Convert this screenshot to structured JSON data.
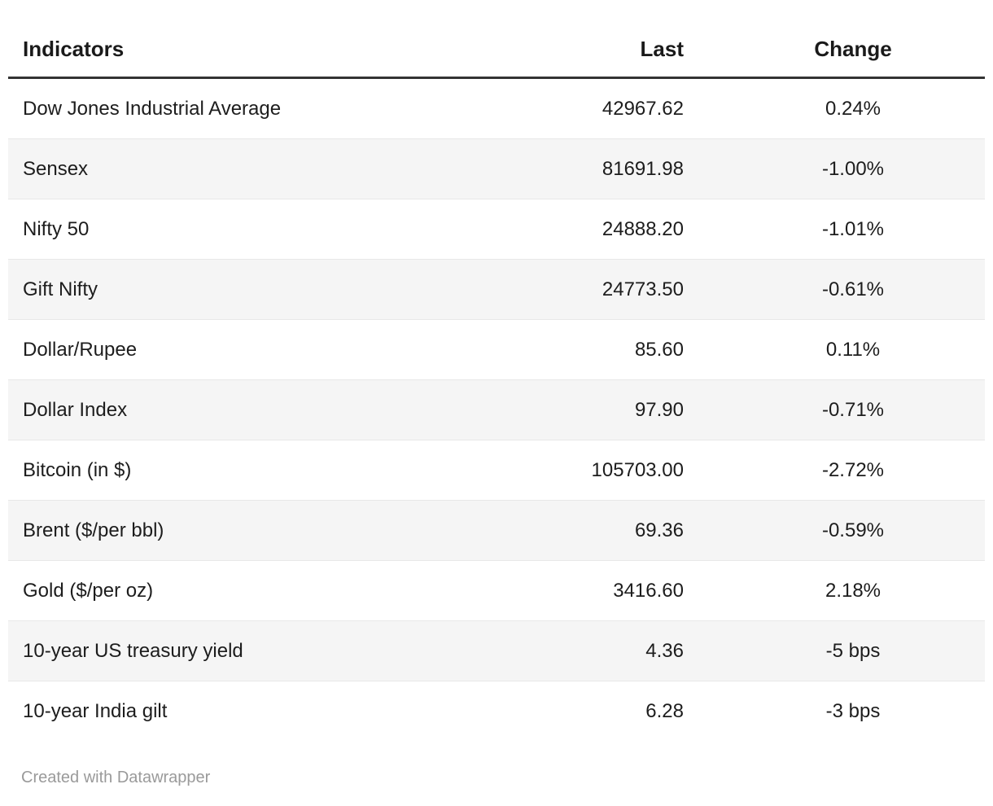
{
  "colors": {
    "background": "#ffffff",
    "text": "#1d1d1d",
    "header_rule": "#333333",
    "row_stripe": "#f5f5f5",
    "row_divider": "#e8e8e8",
    "attribution_text": "#9a9a9a"
  },
  "footer": {
    "attribution": "Created with Datawrapper"
  },
  "chart_data": {
    "type": "table",
    "title": "",
    "columns": [
      "Indicators",
      "Last",
      "Change"
    ],
    "column_alignments": [
      "left",
      "right",
      "center"
    ],
    "rows": [
      [
        "Dow Jones Industrial Average",
        "42967.62",
        "0.24%"
      ],
      [
        "Sensex",
        "81691.98",
        "-1.00%"
      ],
      [
        "Nifty 50",
        "24888.20",
        "-1.01%"
      ],
      [
        "Gift Nifty",
        "24773.50",
        "-0.61%"
      ],
      [
        "Dollar/Rupee",
        "85.60",
        "0.11%"
      ],
      [
        "Dollar Index",
        "97.90",
        "-0.71%"
      ],
      [
        "Bitcoin (in $)",
        "105703.00",
        "-2.72%"
      ],
      [
        "Brent ($/per bbl)",
        "69.36",
        "-0.59%"
      ],
      [
        "Gold ($/per oz)",
        "3416.60",
        "2.18%"
      ],
      [
        "10-year US treasury yield",
        "4.36",
        "-5 bps"
      ],
      [
        "10-year India gilt",
        "6.28",
        "-3 bps"
      ]
    ],
    "layout_hints": {
      "striped_rows": true,
      "stripe_on": "even",
      "header_rule_thickness_px": 3,
      "grid": "horizontal-dividers-only"
    }
  }
}
